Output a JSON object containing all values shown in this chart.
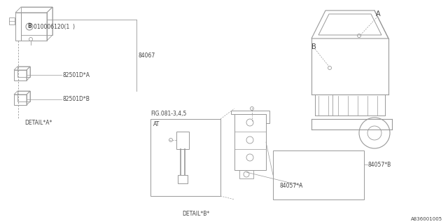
{
  "bg_color": "#ffffff",
  "line_color": "#999999",
  "text_color": "#444444",
  "part_number_ref": "A836001005",
  "detail_a_label": "DETAIL*A*",
  "detail_b_label": "DETAIL*B*",
  "fig_label": "FIG.081-3,4,5",
  "at_label": "AT",
  "label_84067": "84067",
  "label_82501DA": "82501D*A",
  "label_82501DB": "82501D*B",
  "label_84057A": "84057*A",
  "label_84057B": "84057*B",
  "label_B_circle": "B",
  "label_A": "A",
  "label_B": "B",
  "label_010006120": "010006120(1  )"
}
